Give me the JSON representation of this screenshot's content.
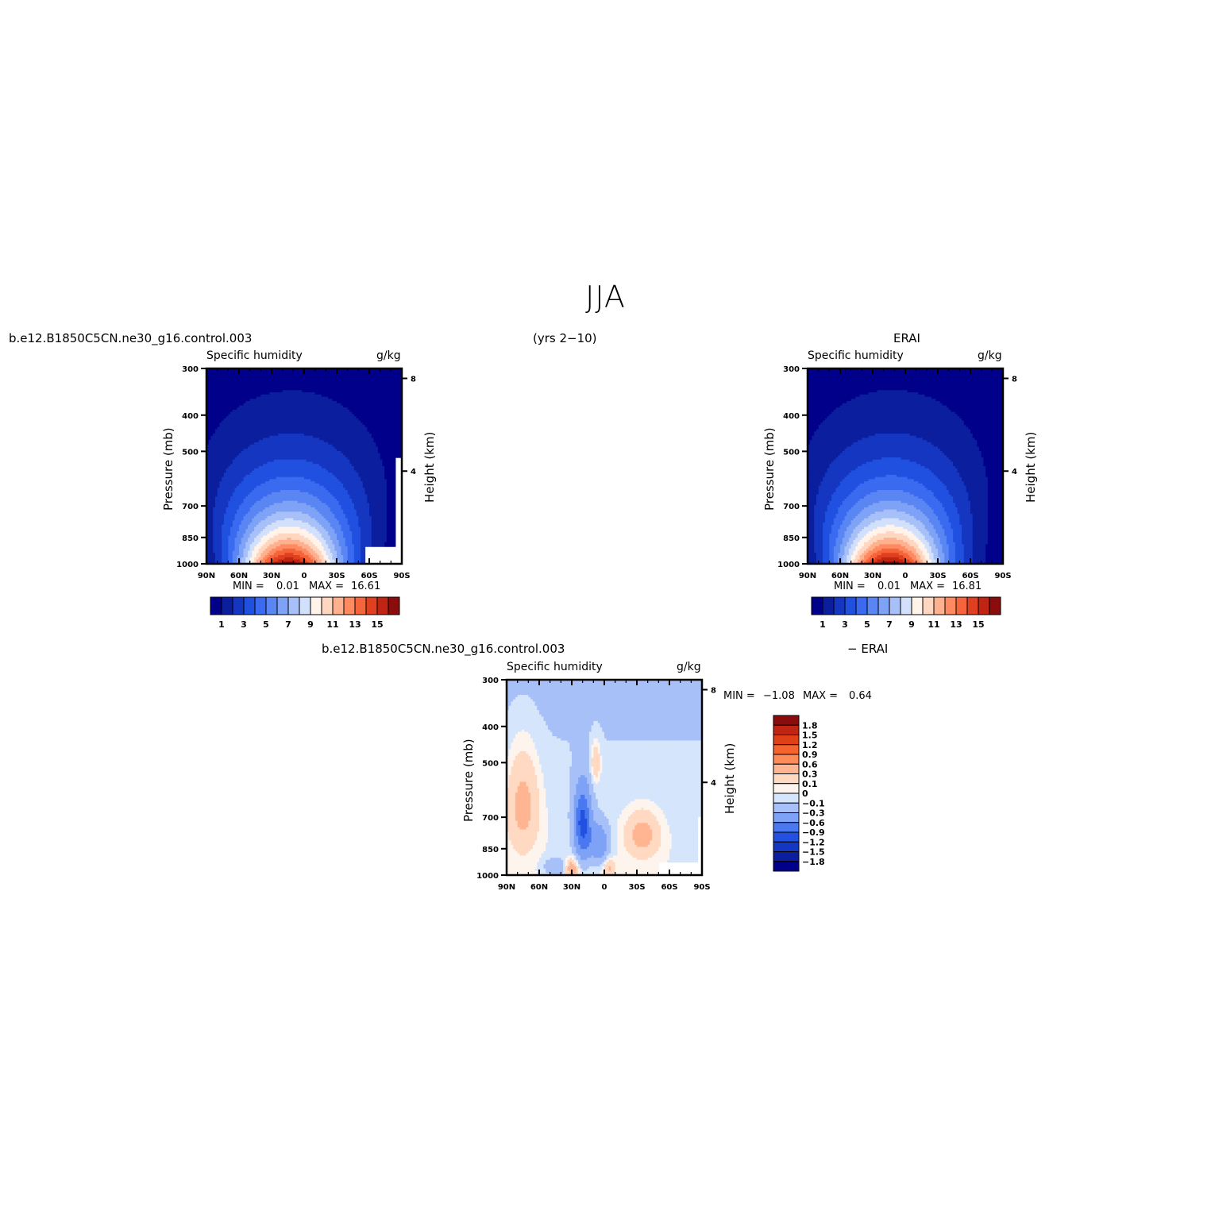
{
  "title": "JJA",
  "header": {
    "case_name": "b.e12.B1850C5CN.ne30_g16.control.003",
    "years": "(yrs 2−10)",
    "obs_name": "ERAI"
  },
  "diff_header": {
    "case_name": "b.e12.B1850C5CN.ne30_g16.control.003",
    "minus_obs": "− ERAI"
  },
  "palette": {
    "full": [
      "#00008b",
      "#0a1e9e",
      "#1536c0",
      "#2050e0",
      "#3a6af0",
      "#5a86f3",
      "#7ea2f6",
      "#a8c0f8",
      "#d2e0fb",
      "#fff3ea",
      "#ffd6c0",
      "#ffb08f",
      "#ff8a60",
      "#f5643a",
      "#e0401f",
      "#c02412",
      "#8b0c0c"
    ],
    "diff": [
      "#00008b",
      "#0a1e9e",
      "#1536c0",
      "#2250e0",
      "#4a78f0",
      "#7ea2f6",
      "#a8c0f8",
      "#d5e5fb",
      "#fdf4ee",
      "#ffd9c2",
      "#ffb592",
      "#ff8a5a",
      "#f5642e",
      "#e04018",
      "#c02412",
      "#8b0c0c"
    ]
  },
  "panels": [
    {
      "id": "model",
      "var_label": "Specific humidity",
      "units": "g/kg",
      "ylabel_left": "Pressure (mb)",
      "ylabel_right": "Height (km)",
      "min_label": "MIN =",
      "min_value": "0.01",
      "max_label": "MAX =",
      "max_value": "16.61",
      "colorbar_labels": [
        "1",
        "3",
        "5",
        "7",
        "9",
        "11",
        "13",
        "15"
      ]
    },
    {
      "id": "obs",
      "var_label": "Specific humidity",
      "units": "g/kg",
      "ylabel_left": "Pressure (mb)",
      "ylabel_right": "Height (km)",
      "min_label": "MIN =",
      "min_value": "0.01",
      "max_label": "MAX =",
      "max_value": "16.81",
      "colorbar_labels": [
        "1",
        "3",
        "5",
        "7",
        "9",
        "11",
        "13",
        "15"
      ]
    },
    {
      "id": "diff",
      "var_label": "Specific humidity",
      "units": "g/kg",
      "ylabel_left": "Pressure (mb)",
      "ylabel_right": "Height (km)",
      "min_label": "MIN =",
      "min_value": "−1.08",
      "max_label": "MAX =",
      "max_value": "0.64",
      "colorbar_labels": [
        "1.8",
        "1.5",
        "1.2",
        "0.9",
        "0.6",
        "0.3",
        "0.1",
        "0",
        "−0.1",
        "−0.3",
        "−0.6",
        "−0.9",
        "−1.2",
        "−1.5",
        "−1.8"
      ]
    }
  ],
  "chart_data": [
    {
      "type": "heatmap",
      "title": "Specific humidity",
      "units": "g/kg",
      "ylabel": "Pressure (mb)",
      "ylabel_right": "Height (km)",
      "x_ticks": [
        "90N",
        "60N",
        "30N",
        "0",
        "30S",
        "60S",
        "90S"
      ],
      "y_ticks": [
        "300",
        "400",
        "500",
        "700",
        "850",
        "1000"
      ],
      "y_ticks_right": [
        "8",
        "4"
      ],
      "x_range": [
        90,
        -90
      ],
      "y_range": [
        1000,
        300
      ],
      "peak_latitude": 15,
      "max": 16.61,
      "min": 0.01,
      "contour_levels": [
        1,
        2,
        3,
        4,
        5,
        6,
        7,
        8,
        9,
        10,
        11,
        12,
        13,
        14,
        15,
        16
      ]
    },
    {
      "type": "heatmap",
      "title": "Specific humidity",
      "units": "g/kg",
      "ylabel": "Pressure (mb)",
      "ylabel_right": "Height (km)",
      "x_ticks": [
        "90N",
        "60N",
        "30N",
        "0",
        "30S",
        "60S",
        "90S"
      ],
      "y_ticks": [
        "300",
        "400",
        "500",
        "700",
        "850",
        "1000"
      ],
      "y_ticks_right": [
        "8",
        "4"
      ],
      "x_range": [
        90,
        -90
      ],
      "y_range": [
        1000,
        300
      ],
      "peak_latitude": 15,
      "max": 16.81,
      "min": 0.01,
      "contour_levels": [
        1,
        2,
        3,
        4,
        5,
        6,
        7,
        8,
        9,
        10,
        11,
        12,
        13,
        14,
        15,
        16
      ]
    },
    {
      "type": "heatmap",
      "title": "Specific humidity",
      "units": "g/kg",
      "ylabel": "Pressure (mb)",
      "ylabel_right": "Height (km)",
      "x_ticks": [
        "90N",
        "60N",
        "30N",
        "0",
        "30S",
        "60S",
        "90S"
      ],
      "y_ticks": [
        "300",
        "400",
        "500",
        "700",
        "850",
        "1000"
      ],
      "y_ticks_right": [
        "8",
        "4"
      ],
      "x_range": [
        90,
        -90
      ],
      "y_range": [
        1000,
        300
      ],
      "max": 0.64,
      "min": -1.08,
      "contour_levels": [
        -1.8,
        -1.5,
        -1.2,
        -0.9,
        -0.6,
        -0.3,
        -0.1,
        0,
        0.1,
        0.3,
        0.6,
        0.9,
        1.2,
        1.5,
        1.8
      ]
    }
  ]
}
